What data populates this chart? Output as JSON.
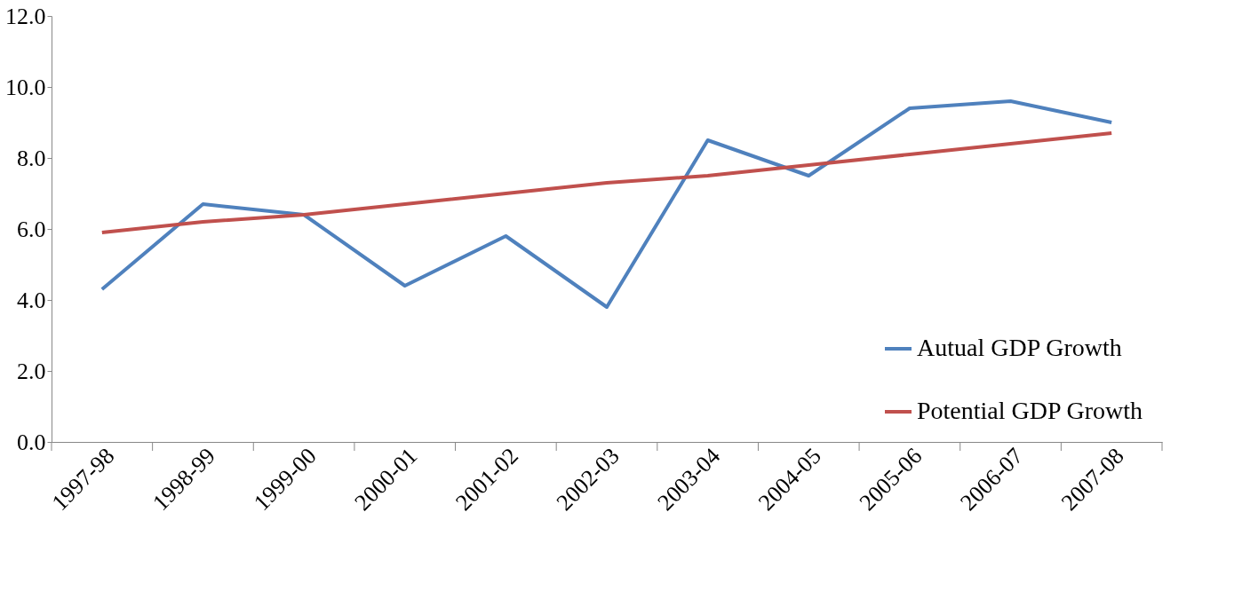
{
  "chart_data": {
    "type": "line",
    "categories": [
      "1997-98",
      "1998-99",
      "1999-00",
      "2000-01",
      "2001-02",
      "2002-03",
      "2003-04",
      "2004-05",
      "2005-06",
      "2006-07",
      "2007-08"
    ],
    "series": [
      {
        "name": "Autual GDP Growth",
        "color": "#4f81bd",
        "values": [
          4.3,
          6.7,
          6.4,
          4.4,
          5.8,
          3.8,
          8.5,
          7.5,
          9.4,
          9.6,
          9.0
        ]
      },
      {
        "name": "Potential GDP Growth",
        "color": "#c0504d",
        "values": [
          5.9,
          6.2,
          6.4,
          6.7,
          7.0,
          7.3,
          7.5,
          7.8,
          8.1,
          8.4,
          8.7
        ]
      }
    ],
    "ylim": [
      0,
      12
    ],
    "yticks": [
      {
        "value": 0,
        "label": "0.0"
      },
      {
        "value": 2,
        "label": "2.0"
      },
      {
        "value": 4,
        "label": "4.0"
      },
      {
        "value": 6,
        "label": "6.0"
      },
      {
        "value": 8,
        "label": "8.0"
      },
      {
        "value": 10,
        "label": "10.0"
      },
      {
        "value": 12,
        "label": "12.0"
      }
    ],
    "legend": "right",
    "grid": false,
    "marker": "none",
    "line_style": "solid"
  }
}
